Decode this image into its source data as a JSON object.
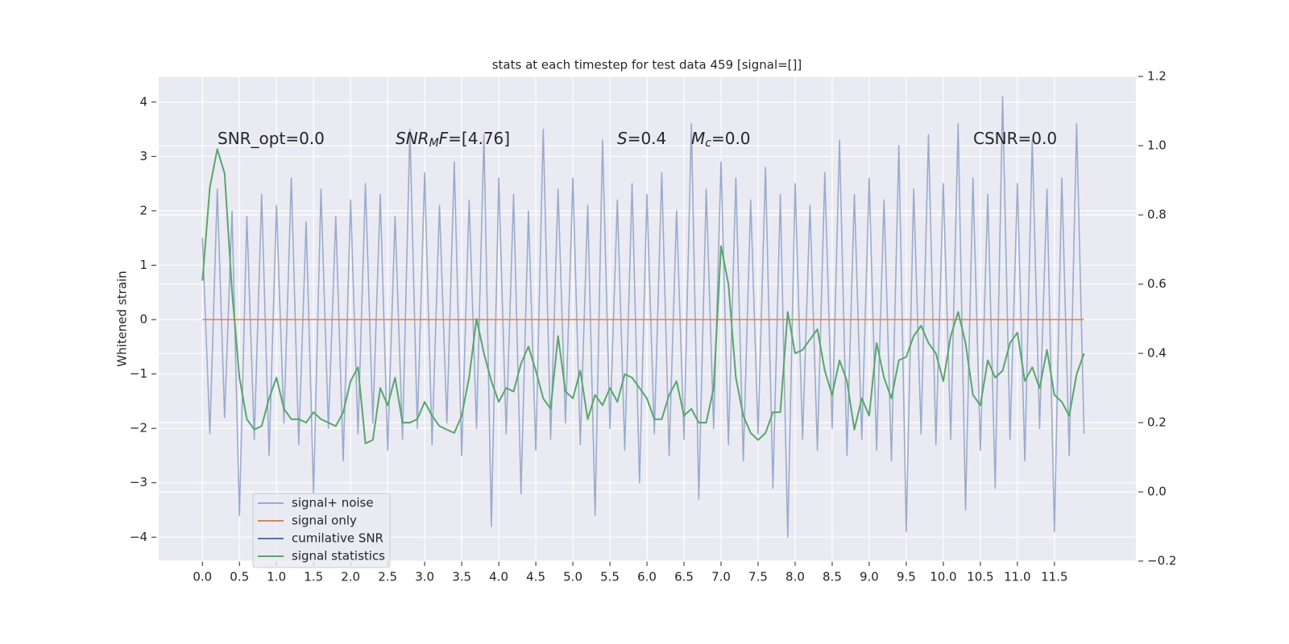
{
  "chart_data": {
    "type": "line",
    "title": "stats at each timestep for test data 459 [signal=[]]",
    "ylabel": "Whitened strain",
    "x": [
      0,
      0.1,
      0.2,
      0.3,
      0.4,
      0.5,
      0.6,
      0.7,
      0.8,
      0.9,
      1,
      1.1,
      1.2,
      1.3,
      1.4,
      1.5,
      1.6,
      1.7,
      1.8,
      1.9,
      2,
      2.1,
      2.2,
      2.3,
      2.4,
      2.5,
      2.6,
      2.7,
      2.8,
      2.9,
      3,
      3.1,
      3.2,
      3.3,
      3.4,
      3.5,
      3.6,
      3.7,
      3.8,
      3.9,
      4,
      4.1,
      4.2,
      4.3,
      4.4,
      4.5,
      4.6,
      4.7,
      4.8,
      4.9,
      5,
      5.1,
      5.2,
      5.3,
      5.4,
      5.5,
      5.6,
      5.7,
      5.8,
      5.9,
      6,
      6.1,
      6.2,
      6.3,
      6.4,
      6.5,
      6.6,
      6.7,
      6.8,
      6.9,
      7,
      7.1,
      7.2,
      7.3,
      7.4,
      7.5,
      7.6,
      7.7,
      7.8,
      7.9,
      8,
      8.1,
      8.2,
      8.3,
      8.4,
      8.5,
      8.6,
      8.7,
      8.8,
      8.9,
      9,
      9.1,
      9.2,
      9.3,
      9.4,
      9.5,
      9.6,
      9.7,
      9.8,
      9.9,
      10,
      10.1,
      10.2,
      10.3,
      10.4,
      10.5,
      10.6,
      10.7,
      10.8,
      10.9,
      11,
      11.1,
      11.2,
      11.3,
      11.4,
      11.5,
      11.6,
      11.7,
      11.8,
      11.9
    ],
    "series": [
      {
        "name": "signal+ noise",
        "color": "#9aabcf",
        "values": [
          1.5,
          -2.1,
          2.4,
          -1.8,
          2.0,
          -3.6,
          1.9,
          -2.2,
          2.3,
          -2.5,
          2.1,
          -1.9,
          2.6,
          -2.3,
          1.8,
          -3.2,
          2.4,
          -2.0,
          1.9,
          -2.6,
          2.2,
          -2.1,
          2.5,
          -1.9,
          2.3,
          -2.4,
          1.9,
          -2.2,
          3.5,
          -2.0,
          2.7,
          -2.3,
          2.1,
          -1.9,
          2.9,
          -2.5,
          2.2,
          -2.0,
          3.4,
          -3.8,
          2.6,
          -2.1,
          2.3,
          -3.2,
          2.0,
          -2.4,
          3.5,
          -2.2,
          2.4,
          -1.9,
          2.6,
          -2.3,
          2.1,
          -3.6,
          3.3,
          -2.0,
          2.2,
          -2.4,
          2.5,
          -3.0,
          2.3,
          -2.1,
          2.7,
          -2.5,
          2.0,
          -2.2,
          3.6,
          -3.3,
          2.4,
          -2.0,
          2.9,
          -2.3,
          2.6,
          -2.6,
          2.2,
          -2.1,
          2.8,
          -3.1,
          2.3,
          -4.0,
          2.5,
          -2.2,
          2.1,
          -2.4,
          2.7,
          -2.0,
          3.3,
          -2.5,
          2.3,
          -2.2,
          2.6,
          -2.4,
          2.2,
          -2.6,
          3.2,
          -3.9,
          2.4,
          -2.1,
          3.4,
          -2.3,
          2.5,
          -2.2,
          3.6,
          -3.5,
          2.6,
          -2.4,
          2.3,
          -3.1,
          4.1,
          -2.2,
          2.5,
          -2.6,
          3.3,
          -2.0,
          2.4,
          -3.9,
          2.6,
          -2.5,
          3.6,
          -2.1
        ]
      },
      {
        "name": "signal only",
        "color": "#dd8452",
        "x": [
          0,
          11.9
        ],
        "values": [
          0,
          0
        ]
      },
      {
        "name": "cumilative SNR",
        "color": "#4c72b0"
      },
      {
        "name": "signal statistics",
        "color": "#55a868",
        "axis": "y2",
        "values": [
          0.61,
          0.88,
          0.99,
          0.92,
          0.58,
          0.33,
          0.21,
          0.18,
          0.19,
          0.27,
          0.33,
          0.24,
          0.21,
          0.21,
          0.2,
          0.23,
          0.21,
          0.2,
          0.19,
          0.23,
          0.32,
          0.36,
          0.14,
          0.15,
          0.3,
          0.25,
          0.33,
          0.2,
          0.2,
          0.21,
          0.26,
          0.22,
          0.19,
          0.18,
          0.17,
          0.22,
          0.33,
          0.5,
          0.4,
          0.32,
          0.26,
          0.3,
          0.29,
          0.37,
          0.42,
          0.35,
          0.27,
          0.24,
          0.45,
          0.29,
          0.27,
          0.35,
          0.21,
          0.28,
          0.25,
          0.3,
          0.26,
          0.34,
          0.33,
          0.3,
          0.27,
          0.21,
          0.21,
          0.28,
          0.32,
          0.22,
          0.24,
          0.2,
          0.2,
          0.3,
          0.71,
          0.6,
          0.33,
          0.22,
          0.17,
          0.15,
          0.17,
          0.23,
          0.23,
          0.52,
          0.4,
          0.41,
          0.44,
          0.47,
          0.35,
          0.28,
          0.38,
          0.32,
          0.18,
          0.27,
          0.22,
          0.43,
          0.33,
          0.27,
          0.38,
          0.39,
          0.45,
          0.48,
          0.43,
          0.4,
          0.32,
          0.45,
          0.52,
          0.43,
          0.28,
          0.25,
          0.38,
          0.33,
          0.35,
          0.43,
          0.46,
          0.32,
          0.36,
          0.3,
          0.41,
          0.28,
          0.26,
          0.22,
          0.34,
          0.4
        ]
      }
    ],
    "annotations": [
      {
        "parts": [
          {
            "text": "SNR_opt=0.0"
          }
        ]
      },
      {
        "parts": [
          {
            "text": "SNR",
            "style": "italic"
          },
          {
            "text": "M",
            "style": "italic-sub"
          },
          {
            "text": "F",
            "style": "italic"
          },
          {
            "text": "=[4.76]"
          }
        ]
      },
      {
        "parts": [
          {
            "text": "S",
            "style": "italic"
          },
          {
            "text": "=0.4"
          }
        ]
      },
      {
        "parts": [
          {
            "text": "M",
            "style": "italic"
          },
          {
            "text": "c",
            "style": "italic-sub"
          },
          {
            "text": "=0.0"
          }
        ]
      },
      {
        "parts": [
          {
            "text": "CSNR=0.0"
          }
        ]
      }
    ],
    "xlim": [
      -0.59,
      12.6
    ],
    "ylim": [
      -4.44,
      4.47
    ],
    "y2lim": [
      -0.2,
      1.2
    ],
    "xticks": [
      {
        "value": 0,
        "label": "0.0"
      },
      0.5,
      {
        "value": 1,
        "label": "1.0"
      },
      1.5,
      {
        "value": 2,
        "label": "2.0"
      },
      2.5,
      {
        "value": 3,
        "label": "3.0"
      },
      3.5,
      {
        "value": 4,
        "label": "4.0"
      },
      4.5,
      {
        "value": 5,
        "label": "5.0"
      },
      5.5,
      {
        "value": 6,
        "label": "6.0"
      },
      6.5,
      {
        "value": 7,
        "label": "7.0"
      },
      7.5,
      {
        "value": 8,
        "label": "8.0"
      },
      8.5,
      {
        "value": 9,
        "label": "9.0"
      },
      9.5,
      {
        "value": 10,
        "label": "10.0"
      },
      10.5,
      {
        "value": 11,
        "label": "11.0"
      },
      11.5
    ],
    "yticks": [
      {
        "value": -4,
        "label": "−4"
      },
      {
        "value": -3,
        "label": "−3"
      },
      {
        "value": -2,
        "label": "−2"
      },
      {
        "value": -1,
        "label": "−1"
      },
      0,
      1,
      2,
      3,
      4
    ],
    "y2ticks": [
      {
        "value": -0.2,
        "label": "−0.2"
      },
      {
        "value": 0,
        "label": "0.0"
      },
      0.2,
      0.4,
      0.6,
      0.8,
      {
        "value": 1,
        "label": "1.0"
      },
      1.2
    ],
    "grid": true,
    "legend": "lower left"
  }
}
